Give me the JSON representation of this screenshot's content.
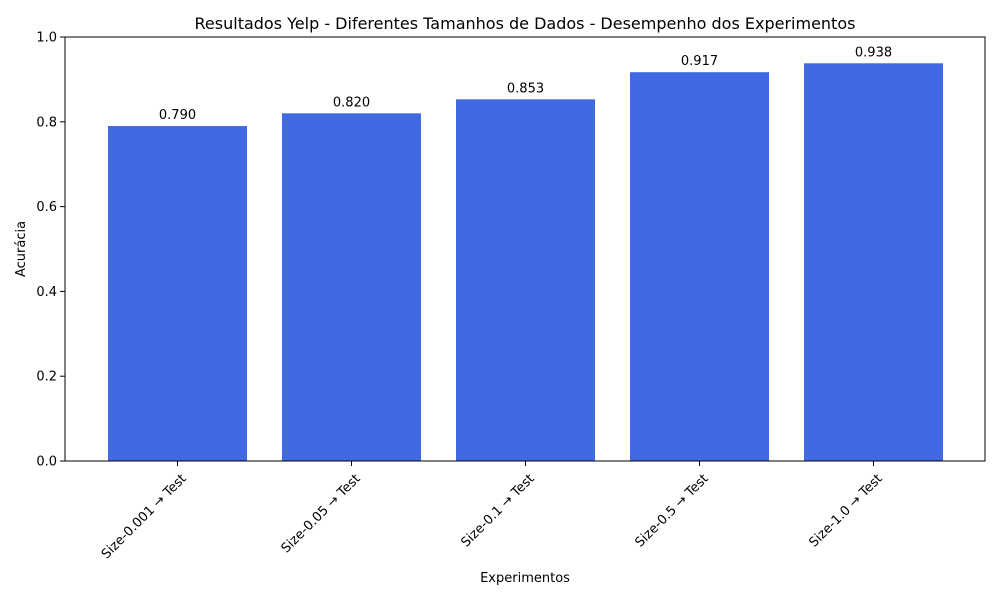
{
  "chart_data": {
    "type": "bar",
    "title": "Resultados Yelp - Diferentes Tamanhos de Dados - Desempenho dos Experimentos",
    "xlabel": "Experimentos",
    "ylabel": "Acurácia",
    "categories": [
      "Size-0.001 → Test",
      "Size-0.05 → Test",
      "Size-0.1 → Test",
      "Size-0.5 → Test",
      "Size-1.0 → Test"
    ],
    "values": [
      0.79,
      0.82,
      0.853,
      0.917,
      0.938
    ],
    "value_labels": [
      "0.790",
      "0.820",
      "0.853",
      "0.917",
      "0.938"
    ],
    "ylim": [
      0,
      1.0
    ],
    "yticks": [
      0.0,
      0.2,
      0.4,
      0.6,
      0.8,
      1.0
    ],
    "ytick_labels": [
      "0.0",
      "0.2",
      "0.4",
      "0.6",
      "0.8",
      "1.0"
    ],
    "grid": false,
    "colors": {
      "bar": "#4169e1",
      "axis": "#000000"
    }
  }
}
